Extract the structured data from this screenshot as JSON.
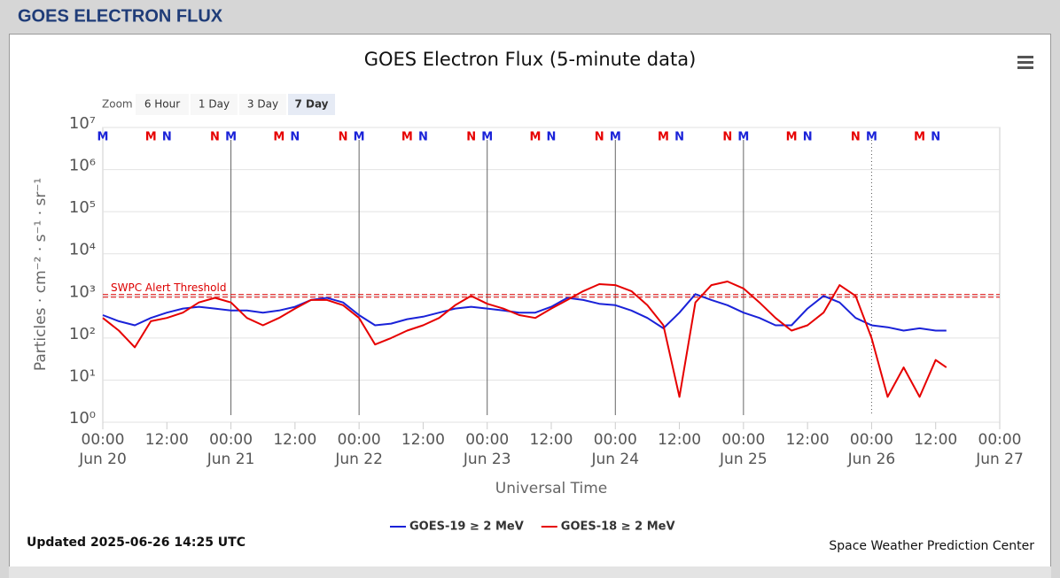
{
  "header": {
    "title": "GOES ELECTRON FLUX"
  },
  "zoom": {
    "label": "Zoom",
    "buttons": [
      "6 Hour",
      "1 Day",
      "3 Day",
      "7 Day"
    ],
    "selected": "7 Day"
  },
  "chart_data": {
    "type": "line",
    "title": "GOES Electron Flux (5-minute data)",
    "x_label": "Universal Time",
    "y_label": "Particles · cm⁻² · s⁻¹ · sr⁻¹",
    "ylog": true,
    "grid": true,
    "ylim": [
      1,
      10000000
    ],
    "yticks": [
      {
        "value": 1,
        "label": "10⁰"
      },
      {
        "value": 10,
        "label": "10¹"
      },
      {
        "value": 100,
        "label": "10²"
      },
      {
        "value": 1000,
        "label": "10³"
      },
      {
        "value": 10000,
        "label": "10⁴"
      },
      {
        "value": 100000,
        "label": "10⁵"
      },
      {
        "value": 1000000,
        "label": "10⁶"
      },
      {
        "value": 10000000,
        "label": "10⁷"
      }
    ],
    "xlim": [
      "Jun 20 00:00",
      "Jun 27 00:00"
    ],
    "xticks": [
      {
        "value": "Jun 20 00:00",
        "label": [
          "00:00",
          "Jun 20"
        ]
      },
      {
        "value": "Jun 20 12:00",
        "label": [
          "12:00"
        ]
      },
      {
        "value": "Jun 21 00:00",
        "label": [
          "00:00",
          "Jun 21"
        ]
      },
      {
        "value": "Jun 21 12:00",
        "label": [
          "12:00"
        ]
      },
      {
        "value": "Jun 22 00:00",
        "label": [
          "00:00",
          "Jun 22"
        ]
      },
      {
        "value": "Jun 22 12:00",
        "label": [
          "12:00"
        ]
      },
      {
        "value": "Jun 23 00:00",
        "label": [
          "00:00",
          "Jun 23"
        ]
      },
      {
        "value": "Jun 23 12:00",
        "label": [
          "12:00"
        ]
      },
      {
        "value": "Jun 24 00:00",
        "label": [
          "00:00",
          "Jun 24"
        ]
      },
      {
        "value": "Jun 24 12:00",
        "label": [
          "12:00"
        ]
      },
      {
        "value": "Jun 25 00:00",
        "label": [
          "00:00",
          "Jun 25"
        ]
      },
      {
        "value": "Jun 25 12:00",
        "label": [
          "12:00"
        ]
      },
      {
        "value": "Jun 26 00:00",
        "label": [
          "00:00",
          "Jun 26"
        ]
      },
      {
        "value": "Jun 26 12:00",
        "label": [
          "12:00"
        ]
      },
      {
        "value": "Jun 27 00:00",
        "label": [
          "00:00",
          "Jun 27"
        ]
      }
    ],
    "threshold": {
      "label": "SWPC Alert Threshold",
      "value": 1000,
      "color": "#dd0000"
    },
    "markers": [
      {
        "label": "M",
        "color": "#1a22d8",
        "x": [
          "Jun 20 00:00",
          "Jun 21 00:00",
          "Jun 22 00:00",
          "Jun 23 00:00",
          "Jun 24 00:00",
          "Jun 25 00:00",
          "Jun 26 00:00"
        ]
      },
      {
        "label": "N",
        "color": "#1a22d8",
        "x": [
          "Jun 20 12:00",
          "Jun 21 12:00",
          "Jun 22 12:00",
          "Jun 23 12:00",
          "Jun 24 12:00",
          "Jun 25 12:00",
          "Jun 26 12:00"
        ]
      },
      {
        "label": "M",
        "color": "#e60000",
        "x": [
          "Jun 20 09:00",
          "Jun 21 09:00",
          "Jun 22 09:00",
          "Jun 23 09:00",
          "Jun 24 09:00",
          "Jun 25 09:00",
          "Jun 26 09:00"
        ]
      },
      {
        "label": "N",
        "color": "#e60000",
        "x": [
          "Jun 20 21:00",
          "Jun 21 21:00",
          "Jun 22 21:00",
          "Jun 23 21:00",
          "Jun 24 21:00",
          "Jun 25 21:00"
        ]
      }
    ],
    "x": [
      "Jun 20 00:00",
      "Jun 20 03:00",
      "Jun 20 06:00",
      "Jun 20 09:00",
      "Jun 20 12:00",
      "Jun 20 15:00",
      "Jun 20 18:00",
      "Jun 20 21:00",
      "Jun 21 00:00",
      "Jun 21 03:00",
      "Jun 21 06:00",
      "Jun 21 09:00",
      "Jun 21 12:00",
      "Jun 21 15:00",
      "Jun 21 18:00",
      "Jun 21 21:00",
      "Jun 22 00:00",
      "Jun 22 03:00",
      "Jun 22 06:00",
      "Jun 22 09:00",
      "Jun 22 12:00",
      "Jun 22 15:00",
      "Jun 22 18:00",
      "Jun 22 21:00",
      "Jun 23 00:00",
      "Jun 23 03:00",
      "Jun 23 06:00",
      "Jun 23 09:00",
      "Jun 23 12:00",
      "Jun 23 15:00",
      "Jun 23 18:00",
      "Jun 23 21:00",
      "Jun 24 00:00",
      "Jun 24 03:00",
      "Jun 24 06:00",
      "Jun 24 09:00",
      "Jun 24 12:00",
      "Jun 24 15:00",
      "Jun 24 18:00",
      "Jun 24 21:00",
      "Jun 25 00:00",
      "Jun 25 03:00",
      "Jun 25 06:00",
      "Jun 25 09:00",
      "Jun 25 12:00",
      "Jun 25 15:00",
      "Jun 25 18:00",
      "Jun 25 21:00",
      "Jun 26 00:00",
      "Jun 26 03:00",
      "Jun 26 06:00",
      "Jun 26 09:00",
      "Jun 26 12:00",
      "Jun 26 14:00"
    ],
    "series": [
      {
        "name": "GOES-19 ≥ 2 MeV",
        "color": "#1a22d8",
        "values": [
          350,
          250,
          200,
          300,
          400,
          500,
          550,
          500,
          450,
          450,
          400,
          450,
          550,
          800,
          900,
          700,
          350,
          200,
          220,
          280,
          320,
          400,
          500,
          550,
          500,
          450,
          400,
          400,
          550,
          900,
          800,
          650,
          600,
          450,
          300,
          170,
          400,
          1100,
          800,
          600,
          400,
          300,
          200,
          200,
          500,
          1000,
          700,
          300,
          200,
          180,
          150,
          170,
          150,
          150
        ]
      },
      {
        "name": "GOES-18 ≥ 2 MeV",
        "color": "#e60000",
        "values": [
          300,
          150,
          60,
          250,
          300,
          400,
          700,
          900,
          700,
          300,
          200,
          300,
          500,
          800,
          800,
          600,
          300,
          70,
          100,
          150,
          200,
          300,
          600,
          1000,
          650,
          500,
          350,
          300,
          500,
          800,
          1300,
          1900,
          1800,
          1300,
          600,
          200,
          4,
          700,
          1800,
          2200,
          1500,
          700,
          300,
          150,
          200,
          400,
          1800,
          1000,
          100,
          4,
          20,
          4,
          30,
          20
        ]
      }
    ]
  },
  "footer": {
    "updated": "Updated 2025-06-26 14:25 UTC",
    "credit": "Space Weather Prediction Center"
  }
}
